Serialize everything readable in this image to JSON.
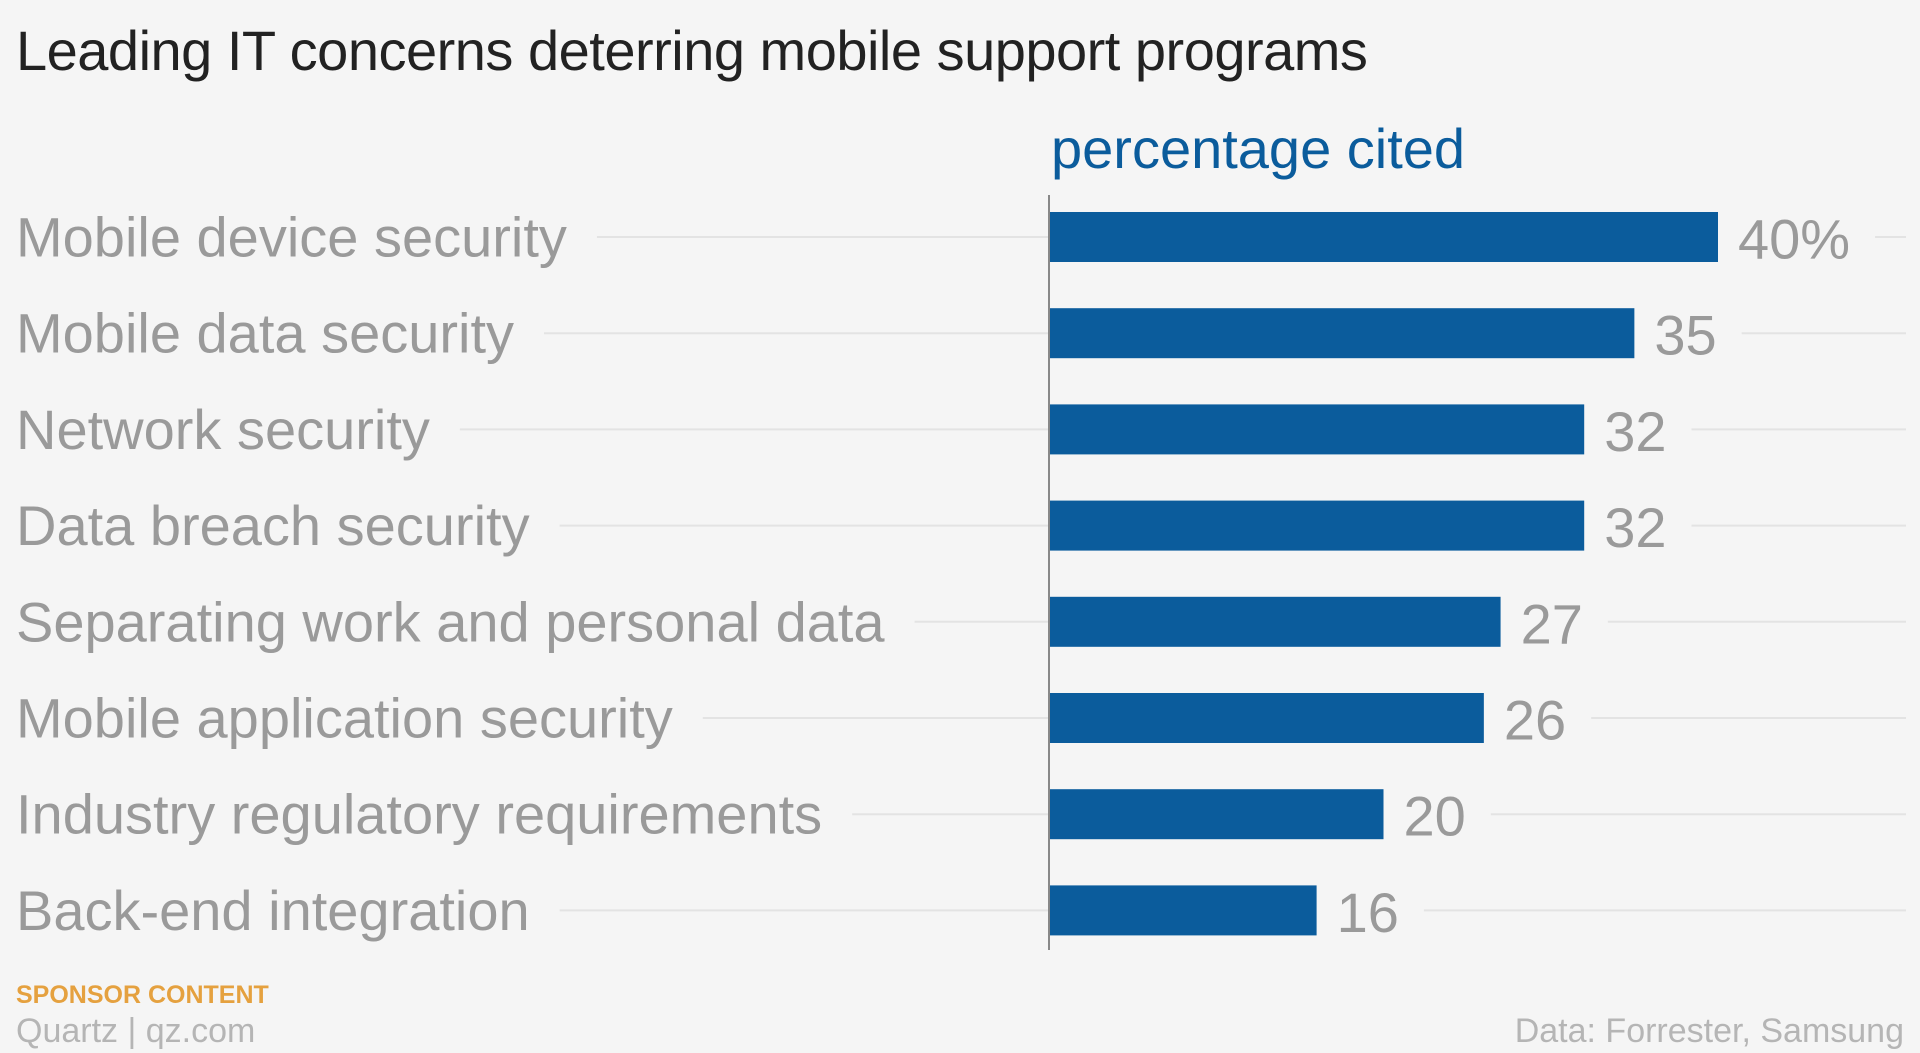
{
  "chart_data": {
    "type": "bar",
    "orientation": "horizontal",
    "title": "Leading IT concerns deterring mobile support programs",
    "measure_label": "percentage cited",
    "categories": [
      "Mobile device security",
      "Mobile data security",
      "Network security",
      "Data breach security",
      "Separating work and personal data",
      "Mobile application security",
      "Industry regulatory requirements",
      "Back-end integration"
    ],
    "values": [
      40,
      35,
      32,
      32,
      27,
      26,
      20,
      16
    ],
    "value_labels": [
      "40%",
      "35",
      "32",
      "32",
      "27",
      "26",
      "20",
      "16"
    ],
    "xlim": [
      0,
      40
    ],
    "grid": false,
    "legend": "none"
  },
  "footer": {
    "sponsor": "SPONSOR CONTENT",
    "brand": "Quartz | qz.com",
    "source": "Data: Forrester, Samsung"
  },
  "colors": {
    "bar": "#0b5c9c",
    "measure_label": "#0b5c9c",
    "category_text": "#9a9a9a",
    "leader_line": "#e3e3e3",
    "axis": "#888888",
    "sponsor": "#e5a13f"
  }
}
